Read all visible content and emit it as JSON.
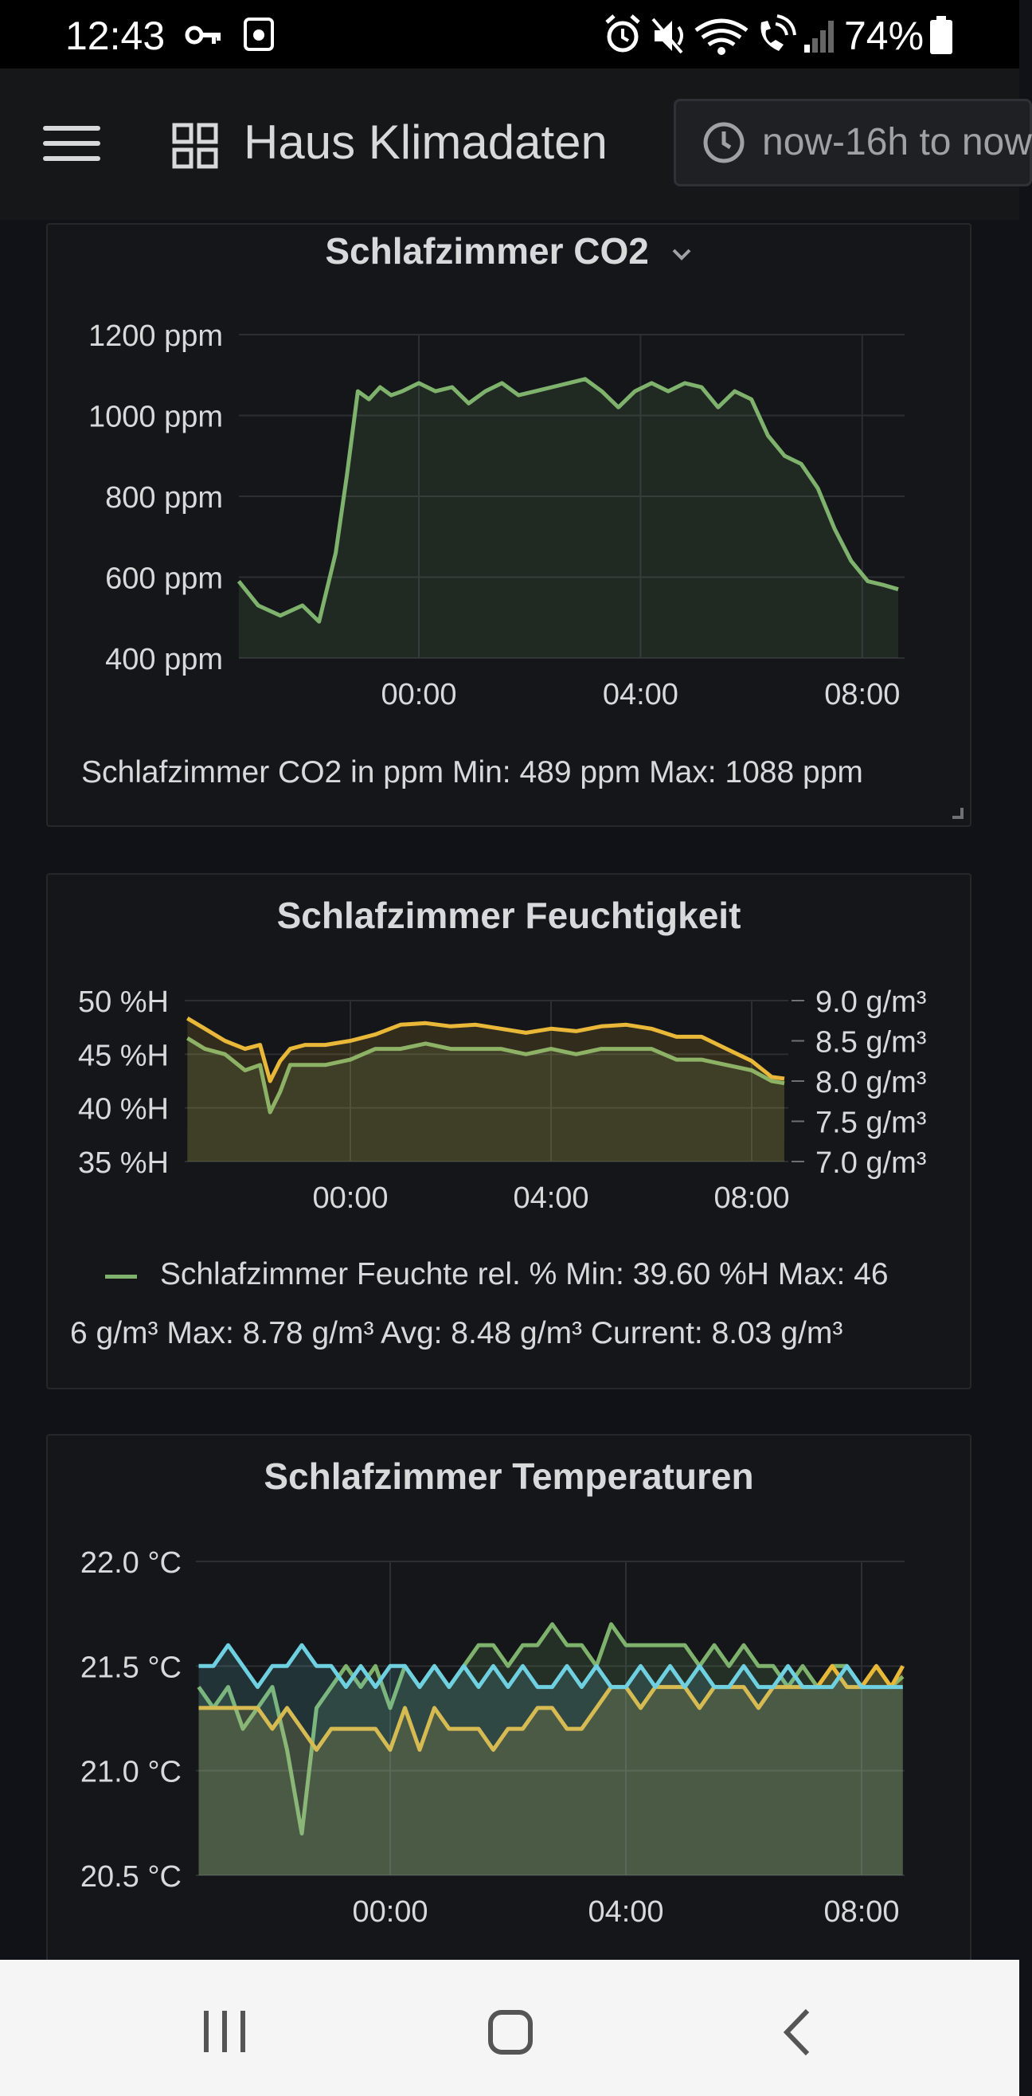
{
  "status_bar": {
    "time": "12:43",
    "battery": "74%",
    "icons": [
      "key-icon",
      "photo-icon",
      "alarm-icon",
      "mute-icon",
      "wifi-icon",
      "call-icon",
      "signal-icon",
      "battery-icon"
    ]
  },
  "header": {
    "title": "Haus Klimadaten",
    "time_range": "now-16h to now"
  },
  "panels": {
    "co2": {
      "title": "Schlafzimmer CO2",
      "legend": "Schlafzimmer CO2 in ppm  Min: 489 ppm  Max: 1088 ppm"
    },
    "humidity": {
      "title": "Schlafzimmer Feuchtigkeit",
      "legend_line1": "Schlafzimmer Feuchte rel. %  Min: 39.60 %H  Max: 46",
      "legend_line2": "6 g/m³  Max: 8.78 g/m³  Avg: 8.48 g/m³  Current: 8.03 g/m³"
    },
    "temperature": {
      "title": "Schlafzimmer Temperaturen"
    }
  },
  "colors": {
    "green": "#7eb26d",
    "yellow": "#eab839",
    "cyan": "#6ed0e0",
    "panel_bg": "#141619"
  },
  "chart_data": [
    {
      "type": "area",
      "title": "Schlafzimmer CO2",
      "x_ticks": [
        "00:00",
        "04:00",
        "08:00"
      ],
      "y_ticks": [
        "400 ppm",
        "600 ppm",
        "800 ppm",
        "1000 ppm",
        "1200 ppm"
      ],
      "ylim": [
        400,
        1200
      ],
      "x_hours": [
        -3.25,
        -2.9,
        -2.5,
        -2.1,
        -1.8,
        -1.5,
        -1.3,
        -1.1,
        -0.9,
        -0.7,
        -0.5,
        -0.3,
        0,
        0.3,
        0.6,
        0.9,
        1.2,
        1.5,
        1.8,
        2.1,
        2.4,
        2.7,
        3.0,
        3.3,
        3.6,
        3.9,
        4.2,
        4.5,
        4.8,
        5.1,
        5.4,
        5.7,
        6.0,
        6.3,
        6.6,
        6.9,
        7.2,
        7.5,
        7.8,
        8.1,
        8.4,
        8.65
      ],
      "series": [
        {
          "name": "Schlafzimmer CO2 in ppm",
          "color": "#7eb26d",
          "values": [
            590,
            530,
            505,
            530,
            490,
            660,
            850,
            1060,
            1040,
            1070,
            1050,
            1060,
            1080,
            1060,
            1070,
            1030,
            1060,
            1080,
            1050,
            1060,
            1070,
            1080,
            1090,
            1060,
            1020,
            1060,
            1080,
            1060,
            1080,
            1070,
            1020,
            1060,
            1040,
            950,
            900,
            880,
            820,
            720,
            640,
            590,
            580,
            570
          ]
        }
      ]
    },
    {
      "type": "line",
      "title": "Schlafzimmer Feuchtigkeit",
      "x_ticks": [
        "00:00",
        "04:00",
        "08:00"
      ],
      "y_ticks_left": [
        "35 %H",
        "40 %H",
        "45 %H",
        "50 %H"
      ],
      "y_ticks_right": [
        "7.0 g/m³",
        "7.5 g/m³",
        "8.0 g/m³",
        "8.5 g/m³",
        "9.0 g/m³"
      ],
      "ylim_left": [
        35,
        50
      ],
      "ylim_right": [
        7.0,
        9.0
      ],
      "x_hours": [
        -3.25,
        -2.9,
        -2.5,
        -2.1,
        -1.8,
        -1.6,
        -1.4,
        -1.2,
        -0.9,
        -0.5,
        0,
        0.5,
        1.0,
        1.5,
        2.0,
        2.5,
        3.0,
        3.5,
        4.0,
        4.5,
        5.0,
        5.5,
        6.0,
        6.5,
        7.0,
        7.5,
        8.0,
        8.4,
        8.65
      ],
      "series": [
        {
          "name": "Schlafzimmer Feuchte rel. %",
          "color": "#7eb26d",
          "values": [
            46.5,
            45.5,
            45.0,
            43.5,
            44.0,
            39.6,
            41.5,
            44.0,
            44.0,
            44.0,
            44.5,
            45.5,
            45.5,
            46.0,
            45.5,
            45.5,
            45.5,
            45.0,
            45.5,
            45.0,
            45.5,
            45.5,
            45.5,
            44.5,
            44.5,
            44.0,
            43.5,
            42.5,
            42.3
          ]
        },
        {
          "color": "#eab839",
          "values": [
            8.78,
            8.65,
            8.5,
            8.4,
            8.45,
            8.0,
            8.25,
            8.4,
            8.45,
            8.45,
            8.5,
            8.58,
            8.7,
            8.72,
            8.68,
            8.7,
            8.65,
            8.6,
            8.65,
            8.62,
            8.68,
            8.7,
            8.65,
            8.55,
            8.55,
            8.4,
            8.25,
            8.05,
            8.03
          ]
        }
      ]
    },
    {
      "type": "line",
      "title": "Schlafzimmer Temperaturen",
      "x_ticks": [
        "00:00",
        "04:00",
        "08:00"
      ],
      "y_ticks": [
        "20.5 °C",
        "21.0 °C",
        "21.5 °C",
        "22.0 °C"
      ],
      "ylim": [
        20.5,
        22.0
      ],
      "x_hours": [
        -3.25,
        -3.0,
        -2.75,
        -2.5,
        -2.25,
        -2.0,
        -1.75,
        -1.5,
        -1.25,
        -1.0,
        -0.75,
        -0.5,
        -0.25,
        0,
        0.25,
        0.5,
        0.75,
        1.0,
        1.25,
        1.5,
        1.75,
        2.0,
        2.25,
        2.5,
        2.75,
        3.0,
        3.25,
        3.5,
        3.75,
        4.0,
        4.25,
        4.5,
        4.75,
        5.0,
        5.25,
        5.5,
        5.75,
        6.0,
        6.25,
        6.5,
        6.75,
        7.0,
        7.25,
        7.5,
        7.75,
        8.0,
        8.25,
        8.5,
        8.7
      ],
      "series": [
        {
          "color": "#7eb26d",
          "values": [
            21.4,
            21.3,
            21.4,
            21.2,
            21.3,
            21.4,
            21.1,
            20.7,
            21.3,
            21.4,
            21.5,
            21.4,
            21.5,
            21.3,
            21.5,
            21.4,
            21.5,
            21.4,
            21.5,
            21.6,
            21.6,
            21.5,
            21.6,
            21.6,
            21.7,
            21.6,
            21.6,
            21.5,
            21.7,
            21.6,
            21.6,
            21.6,
            21.6,
            21.6,
            21.5,
            21.6,
            21.5,
            21.6,
            21.5,
            21.5,
            21.4,
            21.5,
            21.4,
            21.5,
            21.5,
            21.4,
            21.5,
            21.4,
            21.45
          ]
        },
        {
          "color": "#eab839",
          "values": [
            21.3,
            21.3,
            21.3,
            21.3,
            21.3,
            21.2,
            21.3,
            21.2,
            21.1,
            21.2,
            21.2,
            21.2,
            21.2,
            21.1,
            21.3,
            21.1,
            21.3,
            21.2,
            21.2,
            21.2,
            21.1,
            21.2,
            21.2,
            21.3,
            21.3,
            21.2,
            21.2,
            21.3,
            21.4,
            21.4,
            21.3,
            21.4,
            21.4,
            21.4,
            21.3,
            21.4,
            21.4,
            21.4,
            21.3,
            21.4,
            21.4,
            21.4,
            21.4,
            21.5,
            21.4,
            21.4,
            21.5,
            21.4,
            21.5
          ]
        },
        {
          "color": "#6ed0e0",
          "values": [
            21.5,
            21.5,
            21.6,
            21.5,
            21.4,
            21.5,
            21.5,
            21.6,
            21.5,
            21.5,
            21.4,
            21.5,
            21.4,
            21.5,
            21.5,
            21.4,
            21.5,
            21.4,
            21.5,
            21.4,
            21.5,
            21.4,
            21.5,
            21.4,
            21.4,
            21.5,
            21.4,
            21.5,
            21.4,
            21.4,
            21.5,
            21.4,
            21.5,
            21.4,
            21.5,
            21.4,
            21.4,
            21.5,
            21.4,
            21.4,
            21.5,
            21.4,
            21.4,
            21.4,
            21.5,
            21.4,
            21.4,
            21.4,
            21.4
          ]
        }
      ]
    }
  ]
}
